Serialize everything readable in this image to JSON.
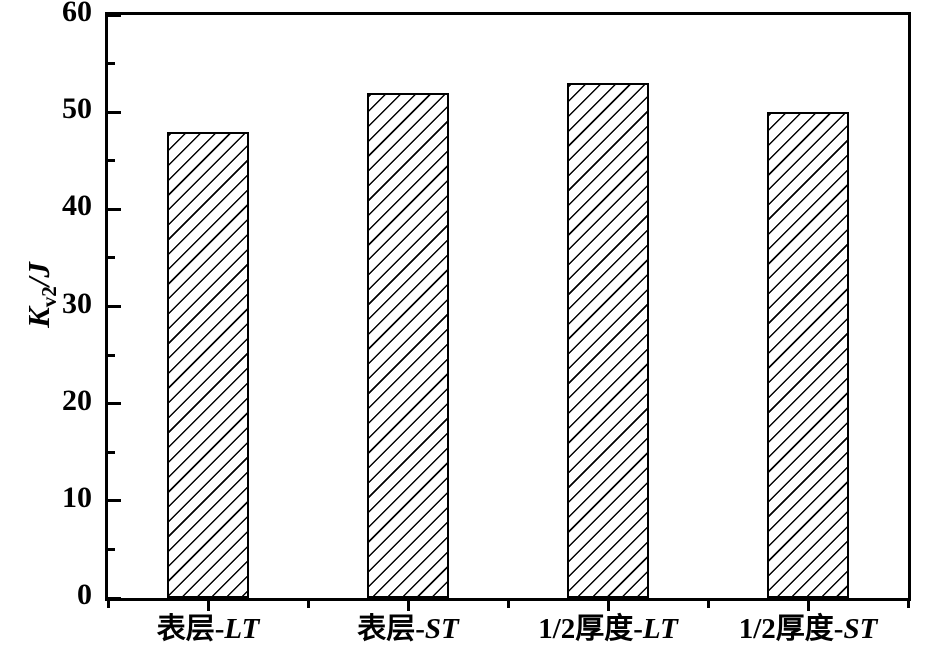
{
  "figure": {
    "background": "#ffffff",
    "axis_color": "#000000",
    "bar_fill": "#ffffff",
    "hatch_color": "#000000"
  },
  "chart_data": {
    "type": "bar",
    "title": "",
    "xlabel": "",
    "ylabel": "Kv2/J",
    "ylabel_parts": {
      "base": "K",
      "sub": "v2",
      "rest": "/J"
    },
    "categories": [
      {
        "label": "表层-LT",
        "text": "表层-",
        "italic": "LT"
      },
      {
        "label": "表层-ST",
        "text": "表层-",
        "italic": "ST"
      },
      {
        "label": "1/2厚度-LT",
        "text": "1/2厚度-",
        "italic": "LT"
      },
      {
        "label": "1/2厚度-ST",
        "text": "1/2厚度-",
        "italic": "ST"
      }
    ],
    "values": [
      48,
      52,
      53,
      50
    ],
    "ylim": [
      0,
      60
    ],
    "y_major_ticks": [
      0,
      10,
      20,
      30,
      40,
      50,
      60
    ],
    "y_minor_ticks": [
      5,
      15,
      25,
      35,
      45,
      55
    ],
    "grid": false,
    "legend": "none",
    "bar_style": "diagonal-hatch"
  }
}
